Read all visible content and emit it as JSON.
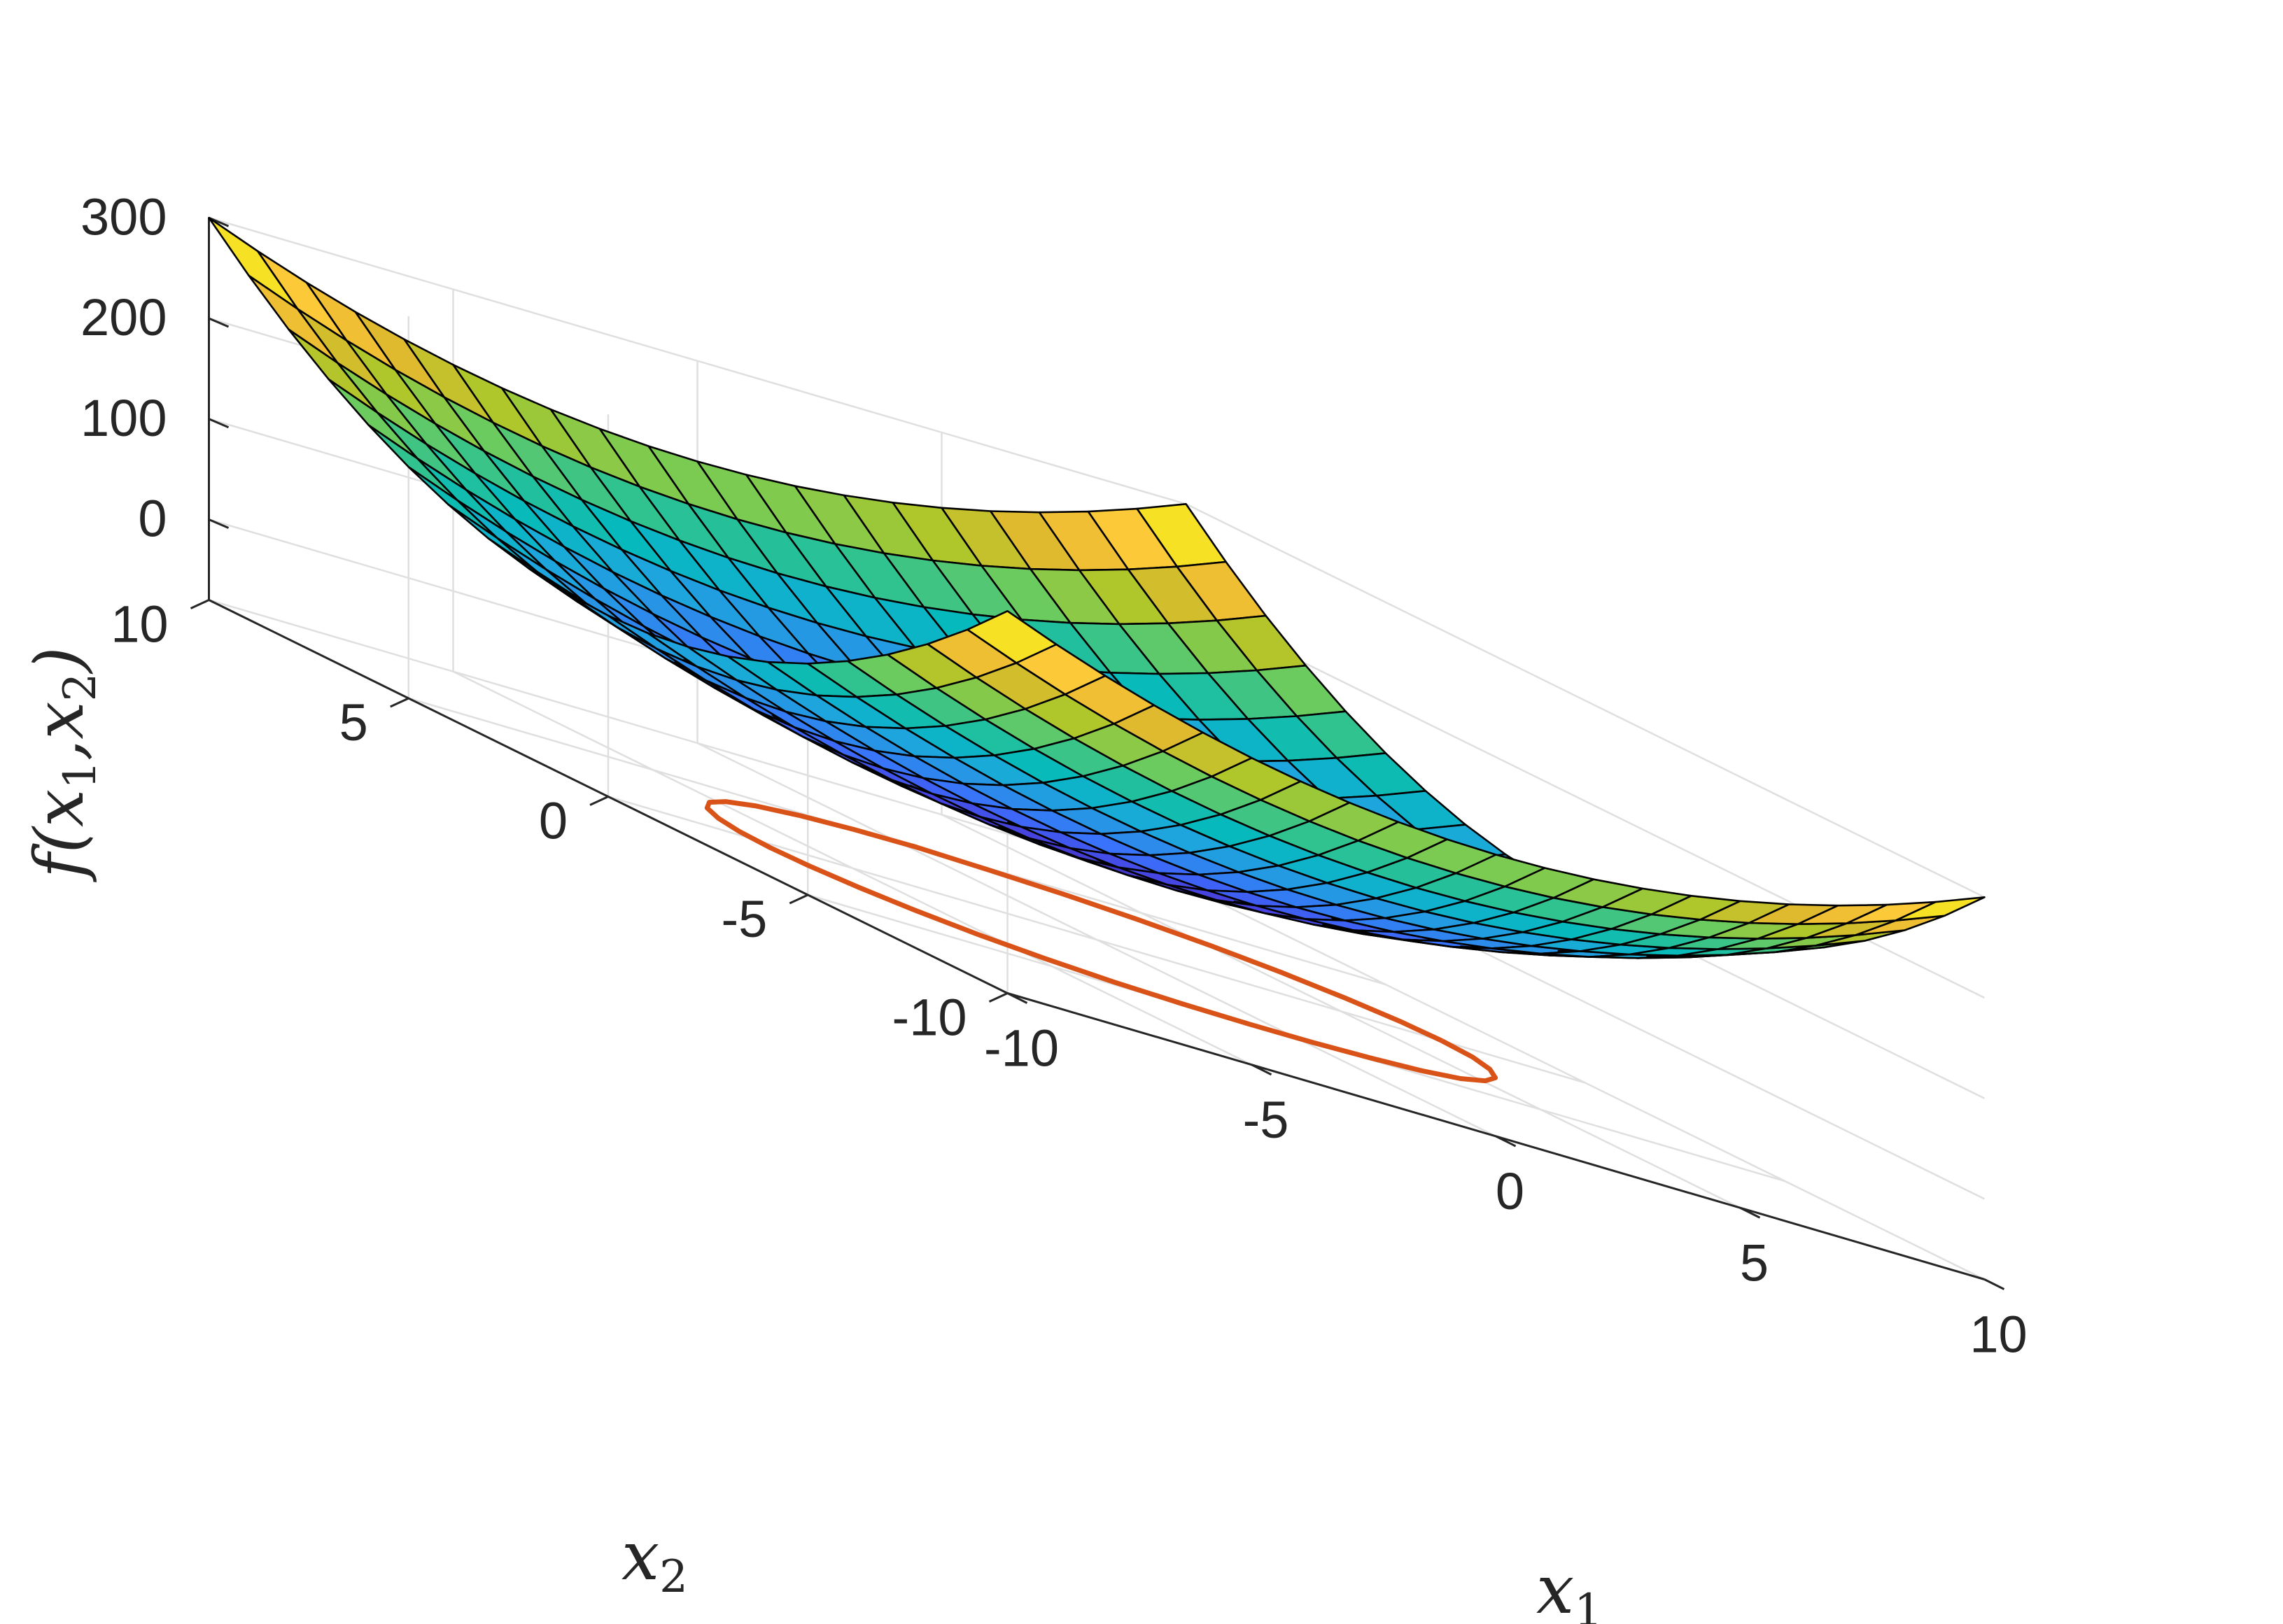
{
  "chart_data": {
    "type": "surface",
    "function": "x1^2 + 2*x2^2",
    "x1": {
      "label": "x",
      "label_sub": "1",
      "range": [
        -10,
        10
      ],
      "ticks": [
        -10,
        -5,
        0,
        5,
        10
      ],
      "tick_labels": [
        "-10",
        "-5",
        "0",
        "5",
        "10"
      ]
    },
    "x2": {
      "label": "x",
      "label_sub": "2",
      "range": [
        -10,
        10
      ],
      "ticks": [
        -10,
        -5,
        0,
        5,
        10
      ],
      "tick_labels": [
        "-10",
        "-5",
        "0",
        "5",
        "10"
      ]
    },
    "z": {
      "label_parts": [
        "f(x",
        "1",
        ",x",
        "2",
        ")"
      ],
      "range": [
        -80,
        300
      ],
      "ticks": [
        0,
        100,
        200,
        300
      ],
      "tick_labels": [
        "0",
        "100",
        "200",
        "300"
      ]
    },
    "grid": true,
    "mesh_intervals": 20,
    "colormap": [
      "#3e26a8",
      "#4743e0",
      "#3b6ffd",
      "#2a8ee9",
      "#1ca8db",
      "#05b9bd",
      "#2ec291",
      "#6ccb5e",
      "#adc72a",
      "#e4b92e",
      "#fdc53b",
      "#f6e71f",
      "#f9fb0e"
    ],
    "contour": {
      "level": 50,
      "z_plane": -80,
      "color": "#d95319",
      "points": [
        [
          7.07,
          0.0
        ],
        [
          6.95,
          0.91
        ],
        [
          6.57,
          1.81
        ],
        [
          5.97,
          2.68
        ],
        [
          5.15,
          3.43
        ],
        [
          4.14,
          4.05
        ],
        [
          2.97,
          4.5
        ],
        [
          1.71,
          4.78
        ],
        [
          0.39,
          4.99
        ],
        [
          -0.95,
          4.91
        ],
        [
          -2.27,
          4.67
        ],
        [
          -3.49,
          4.26
        ],
        [
          -4.57,
          3.7
        ],
        [
          -5.47,
          3.01
        ],
        [
          -6.17,
          2.21
        ],
        [
          -6.65,
          1.34
        ],
        [
          -6.95,
          0.45
        ],
        [
          -7.05,
          -0.45
        ],
        [
          -6.95,
          -1.31
        ],
        [
          -6.65,
          -2.17
        ],
        [
          -6.17,
          -2.99
        ],
        [
          -5.47,
          -3.7
        ],
        [
          -4.57,
          -4.26
        ],
        [
          -3.49,
          -4.67
        ],
        [
          -2.27,
          -4.91
        ],
        [
          -0.95,
          -4.99
        ],
        [
          0.39,
          -4.95
        ],
        [
          1.71,
          -4.78
        ],
        [
          2.97,
          -4.5
        ],
        [
          4.14,
          -4.05
        ],
        [
          5.15,
          -3.43
        ],
        [
          5.97,
          -2.68
        ],
        [
          6.57,
          -1.81
        ],
        [
          6.95,
          -0.91
        ],
        [
          7.07,
          0.0
        ]
      ]
    }
  }
}
